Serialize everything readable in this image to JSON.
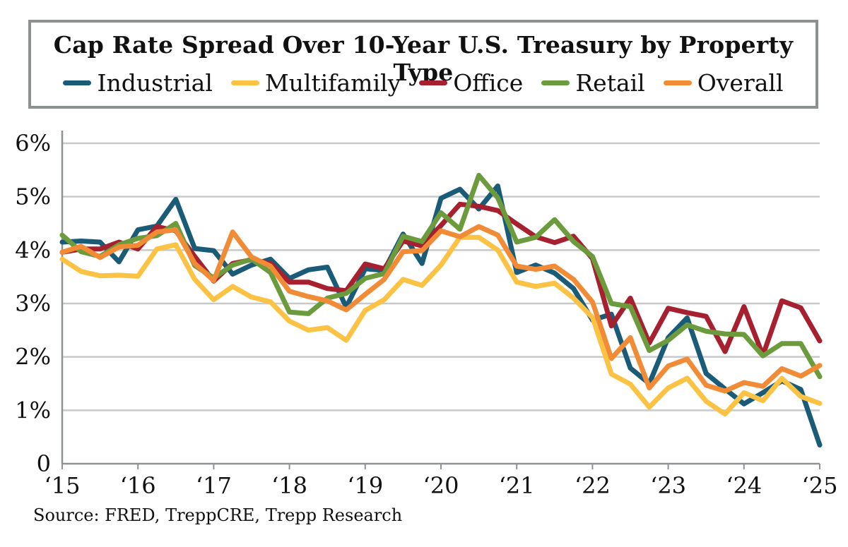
{
  "chart_data": {
    "type": "line",
    "title": "Cap Rate Spread Over 10-Year U.S. Treasury by Property Type",
    "xlabel": "",
    "ylabel": "",
    "x_tick_labels": [
      "‘15",
      "‘16",
      "‘17",
      "‘18",
      "‘19",
      "‘20",
      "‘21",
      "‘22",
      "‘23",
      "‘24",
      "‘25"
    ],
    "y_tick_labels": [
      "0",
      "1%",
      "2%",
      "3%",
      "4%",
      "5%",
      "6%"
    ],
    "ylim": [
      0,
      6
    ],
    "xlim": [
      2015,
      2025
    ],
    "grid": true,
    "legend_position": "top",
    "series": [
      {
        "name": "Industrial",
        "color": "#1a5b78",
        "values": [
          4.15,
          4.17,
          4.15,
          3.78,
          4.38,
          4.45,
          4.95,
          4.03,
          3.99,
          3.55,
          3.72,
          3.83,
          3.47,
          3.63,
          3.68,
          2.93,
          3.65,
          3.62,
          4.3,
          3.75,
          4.97,
          5.14,
          4.77,
          5.2,
          3.58,
          3.72,
          3.57,
          3.28,
          2.69,
          2.8,
          1.79,
          1.5,
          2.36,
          2.73,
          1.69,
          1.4,
          1.12,
          1.33,
          1.55,
          1.39,
          0.35
        ]
      },
      {
        "name": "Multifamily",
        "color": "#fbc244",
        "values": [
          3.83,
          3.6,
          3.52,
          3.53,
          3.51,
          4.02,
          4.1,
          3.45,
          3.07,
          3.32,
          3.12,
          3.03,
          2.67,
          2.5,
          2.55,
          2.31,
          2.87,
          3.07,
          3.45,
          3.34,
          3.72,
          4.24,
          4.24,
          4.0,
          3.4,
          3.32,
          3.38,
          3.1,
          2.74,
          1.68,
          1.49,
          1.06,
          1.42,
          1.6,
          1.17,
          0.93,
          1.33,
          1.18,
          1.6,
          1.26,
          1.13
        ]
      },
      {
        "name": "Office",
        "color": "#a6202f",
        "values": [
          3.96,
          4.02,
          4.02,
          4.15,
          4.02,
          4.44,
          4.36,
          3.88,
          3.42,
          3.75,
          3.82,
          3.75,
          3.4,
          3.4,
          3.28,
          3.24,
          3.74,
          3.65,
          4.17,
          4.08,
          4.46,
          4.86,
          4.82,
          4.74,
          4.49,
          4.25,
          4.14,
          4.26,
          3.84,
          2.58,
          3.1,
          2.26,
          2.91,
          2.83,
          2.76,
          2.1,
          2.94,
          2.03,
          3.05,
          2.92,
          2.3
        ]
      },
      {
        "name": "Retail",
        "color": "#6c9b3e",
        "values": [
          4.28,
          3.97,
          3.88,
          4.1,
          4.22,
          4.27,
          4.5,
          3.71,
          3.48,
          3.72,
          3.83,
          3.58,
          2.84,
          2.81,
          3.1,
          3.19,
          3.47,
          3.56,
          4.26,
          4.16,
          4.7,
          4.39,
          5.4,
          4.98,
          4.15,
          4.24,
          4.57,
          4.16,
          3.88,
          3.0,
          2.94,
          2.12,
          2.31,
          2.6,
          2.48,
          2.43,
          2.42,
          2.02,
          2.25,
          2.25,
          1.63
        ]
      },
      {
        "name": "Overall",
        "color": "#f28b36",
        "values": [
          3.96,
          4.07,
          3.86,
          4.06,
          4.09,
          4.34,
          4.38,
          3.75,
          3.43,
          4.34,
          3.87,
          3.7,
          3.23,
          3.13,
          3.05,
          2.88,
          3.17,
          3.45,
          3.97,
          3.99,
          4.36,
          4.25,
          4.44,
          4.28,
          3.7,
          3.64,
          3.7,
          3.45,
          3.03,
          1.97,
          2.36,
          1.42,
          1.83,
          1.96,
          1.47,
          1.36,
          1.52,
          1.45,
          1.78,
          1.64,
          1.84
        ]
      }
    ]
  },
  "source": "Source: FRED, TreppCRE, Trepp Research"
}
